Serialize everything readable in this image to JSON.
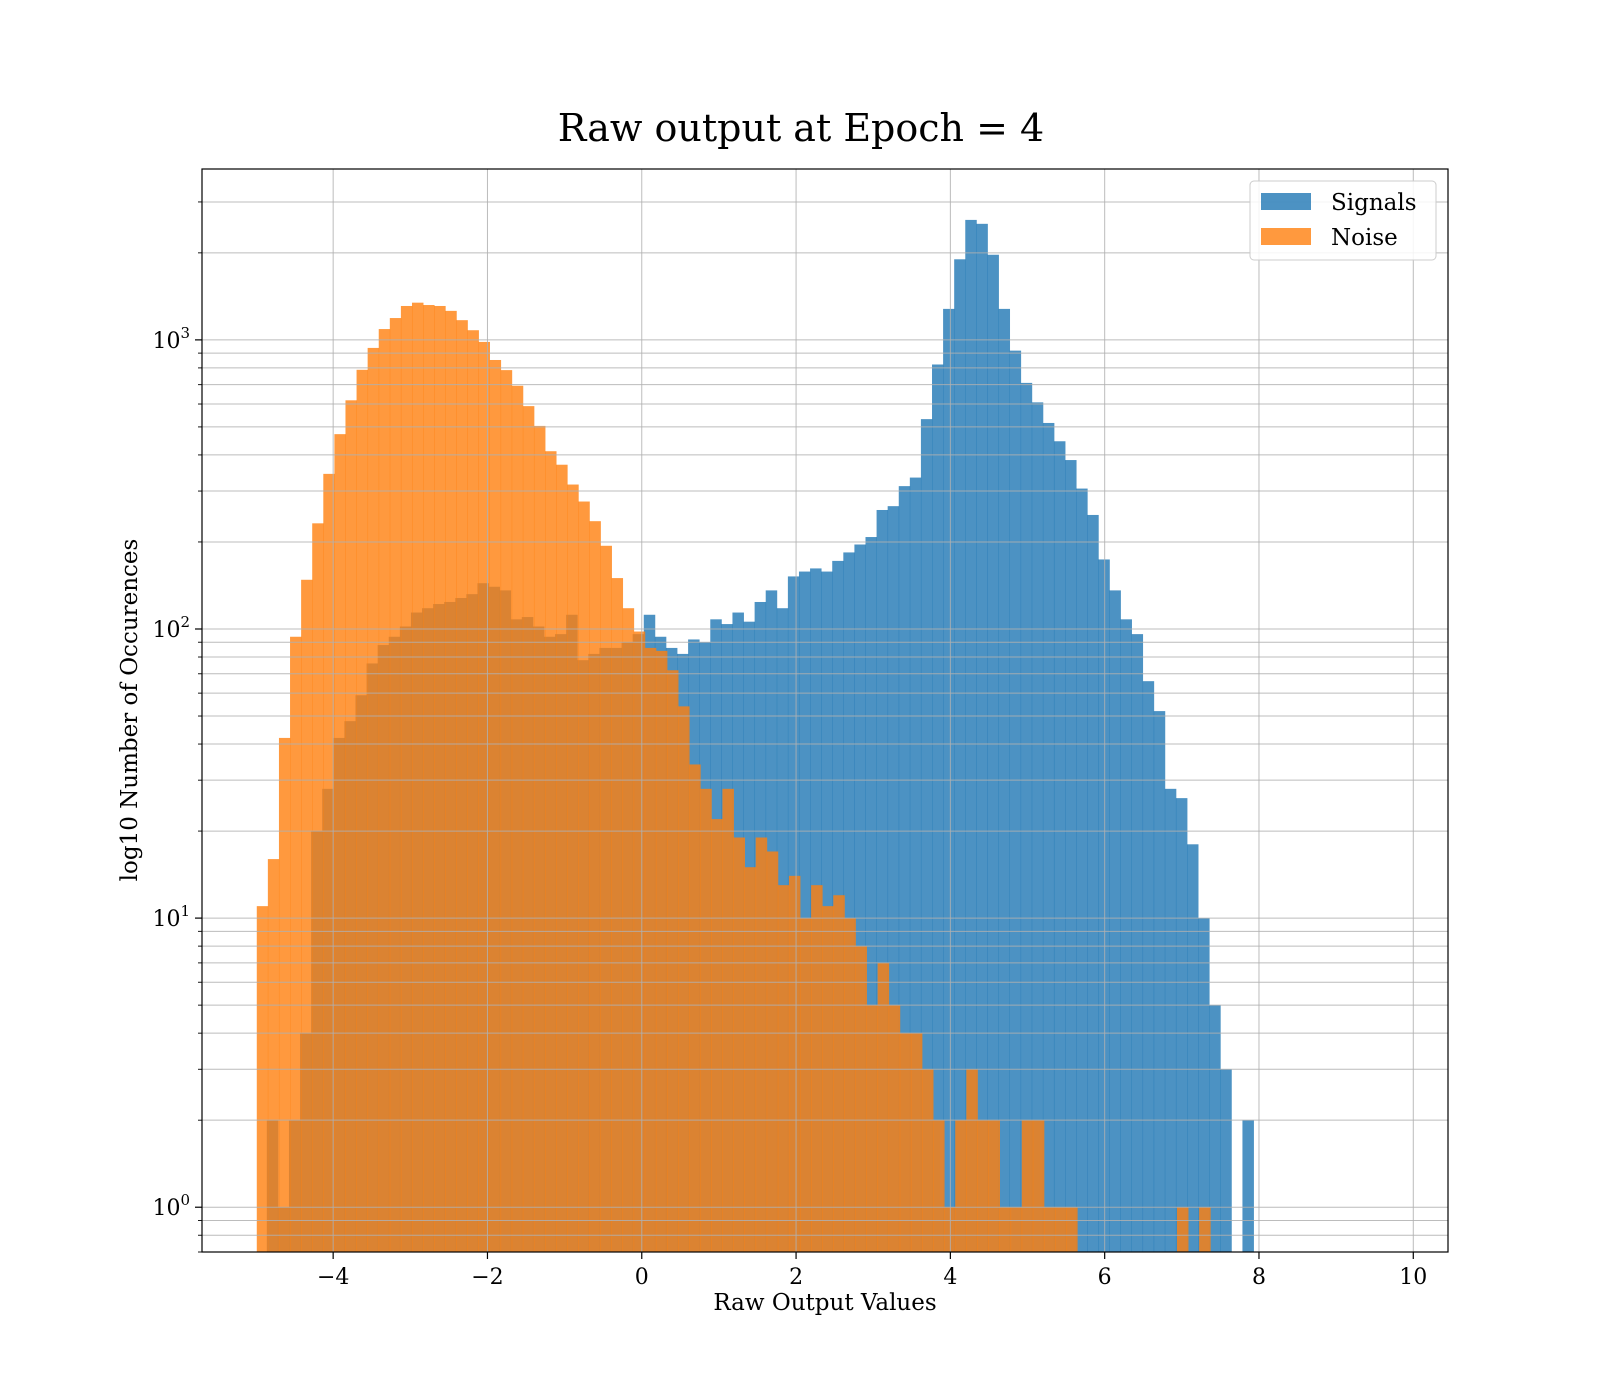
{
  "chart_data": {
    "type": "bar",
    "title": "Raw output at Epoch = 4",
    "xlabel": "Raw Output Values",
    "ylabel": "log10 Number of Occurences",
    "xlim": [
      -5.7,
      10.45
    ],
    "ylim": [
      0.7,
      3900
    ],
    "y_scale": "log",
    "grid": true,
    "legend_position": "top-right",
    "x_ticks": [
      {
        "value": -4,
        "label": "−4"
      },
      {
        "value": -2,
        "label": "−2"
      },
      {
        "value": 0,
        "label": "0"
      },
      {
        "value": 2,
        "label": "2"
      },
      {
        "value": 4,
        "label": "4"
      },
      {
        "value": 6,
        "label": "6"
      },
      {
        "value": 8,
        "label": "8"
      },
      {
        "value": 10,
        "label": "10"
      }
    ],
    "y_ticks": [
      {
        "value": 1,
        "base": "10",
        "exponent": "0"
      },
      {
        "value": 10,
        "base": "10",
        "exponent": "1"
      },
      {
        "value": 100,
        "base": "10",
        "exponent": "2"
      },
      {
        "value": 1000,
        "base": "10",
        "exponent": "3"
      }
    ],
    "series": [
      {
        "name": "Signals",
        "color": "#1f77b4",
        "opacity": 0.8,
        "bin_start": -4.86,
        "bin_width": 0.1437,
        "counts": [
          2,
          1,
          2,
          4,
          20,
          28,
          42,
          48,
          59,
          76,
          88,
          94,
          102,
          114,
          118,
          122,
          124,
          128,
          132,
          144,
          140,
          136,
          108,
          110,
          102,
          94,
          96,
          112,
          78,
          82,
          86,
          86,
          90,
          96,
          112,
          94,
          86,
          82,
          92,
          90,
          108,
          104,
          114,
          106,
          124,
          136,
          118,
          152,
          158,
          162,
          158,
          172,
          184,
          196,
          208,
          258,
          266,
          312,
          334,
          532,
          822,
          1280,
          1900,
          2600,
          2520,
          1970,
          1280,
          918,
          710,
          608,
          516,
          446,
          384,
          306,
          248,
          174,
          136,
          108,
          96,
          66,
          52,
          28,
          26,
          18,
          10,
          5,
          3,
          0,
          2
        ]
      },
      {
        "name": "Noise",
        "color": "#ff7f0e",
        "opacity": 0.8,
        "bin_start": -4.99,
        "bin_width": 0.1437,
        "counts": [
          11,
          16,
          42,
          94,
          148,
          232,
          344,
          472,
          618,
          788,
          938,
          1090,
          1190,
          1310,
          1345,
          1320,
          1310,
          1260,
          1170,
          1080,
          984,
          852,
          786,
          694,
          590,
          504,
          412,
          370,
          316,
          276,
          236,
          194,
          150,
          118,
          98,
          86,
          84,
          72,
          54,
          34,
          28,
          22,
          28,
          19,
          15,
          19,
          17,
          13,
          14,
          10,
          13,
          11,
          12,
          10,
          8,
          5,
          7,
          5,
          4,
          4,
          3,
          2,
          1,
          2,
          3,
          2,
          2,
          1,
          1,
          2,
          2,
          1,
          1,
          1,
          0,
          0,
          0,
          0,
          0,
          0,
          0,
          0,
          0,
          1,
          0,
          1
        ]
      }
    ]
  }
}
